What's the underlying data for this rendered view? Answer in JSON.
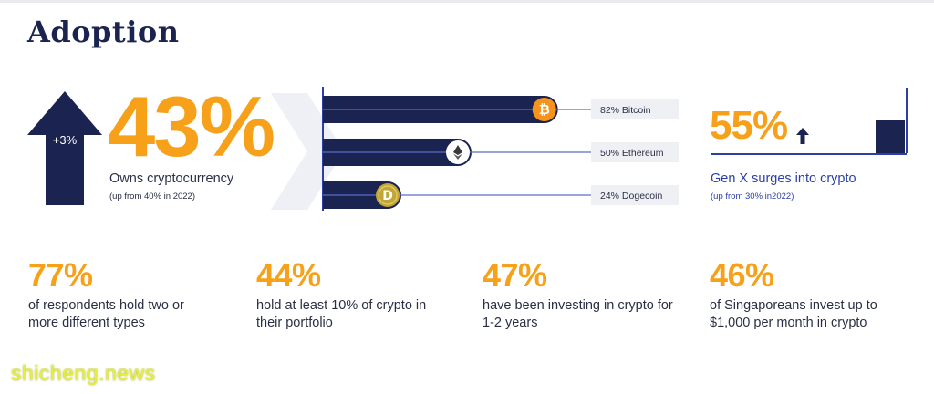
{
  "title": "Adoption",
  "hero": {
    "arrow_label": "+3%",
    "percent": "43%",
    "caption": "Owns cryptocurrency",
    "sub_caption": "(up from 40% in 2022)"
  },
  "chart_data": {
    "type": "bar",
    "categories": [
      "Bitcoin",
      "Ethereum",
      "Dogecoin"
    ],
    "values": [
      82,
      50,
      24
    ],
    "labels": [
      "82% Bitcoin",
      "50% Ethereum",
      "24% Dogecoin"
    ],
    "icons": [
      "bitcoin-icon",
      "ethereum-icon",
      "dogecoin-icon"
    ],
    "xlim": [
      0,
      100
    ],
    "title": "",
    "xlabel": "",
    "ylabel": ""
  },
  "genx": {
    "percent": "55%",
    "caption": "Gen X surges into crypto",
    "sub_caption": "(up from 30% in2022)"
  },
  "stats": [
    {
      "num": "77%",
      "desc": "of respondents hold two or more different types"
    },
    {
      "num": "44%",
      "desc": "hold at least 10% of crypto in their portfolio"
    },
    {
      "num": "47%",
      "desc": "have been investing in crypto for 1-2 years"
    },
    {
      "num": "46%",
      "desc": "of Singaporeans invest up to $1,000 per month in crypto"
    }
  ],
  "watermark": "shicheng.news",
  "colors": {
    "navy": "#1b2350",
    "orange": "#f7a11a",
    "accent_blue": "#2b3fa6",
    "bitcoin": "#f7931a",
    "dogecoin": "#c2a633"
  }
}
